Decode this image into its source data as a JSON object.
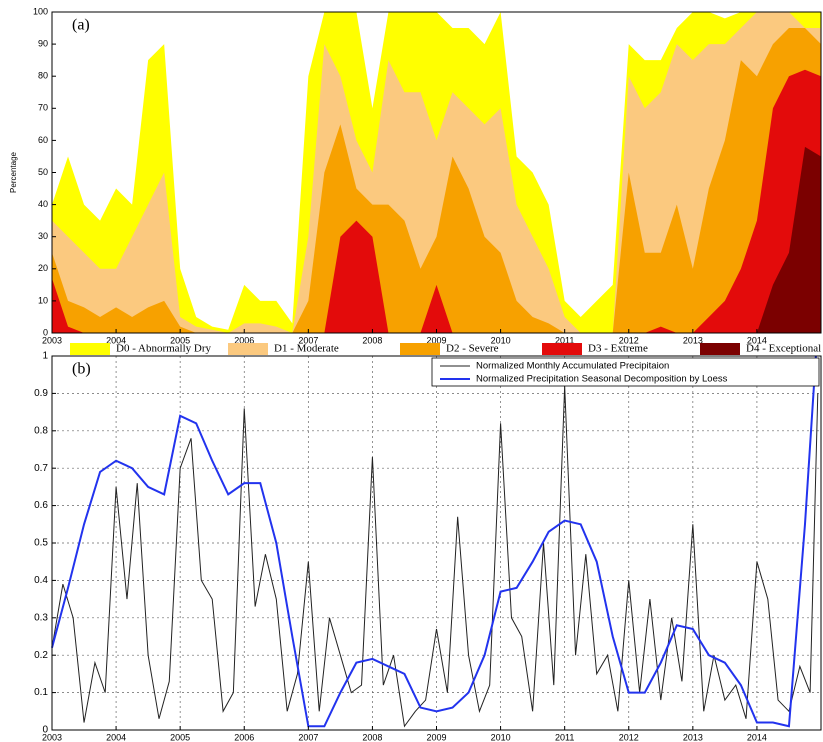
{
  "chart_data": [
    {
      "type": "area",
      "annotation": "(a)",
      "ylabel": "Percentage",
      "xlim": [
        2003,
        2015
      ],
      "xticks": [
        2003,
        2004,
        2005,
        2006,
        2007,
        2008,
        2009,
        2010,
        2011,
        2012,
        2013,
        2014
      ],
      "ylim": [
        0,
        100
      ],
      "yticks": [
        0,
        10,
        20,
        30,
        40,
        50,
        60,
        70,
        80,
        90,
        100
      ],
      "grid": false,
      "legend": "bottom",
      "x": [
        2003,
        2003.25,
        2003.5,
        2003.75,
        2004,
        2004.25,
        2004.5,
        2004.75,
        2005,
        2005.25,
        2005.5,
        2005.75,
        2006,
        2006.25,
        2006.5,
        2006.75,
        2007,
        2007.25,
        2007.5,
        2007.75,
        2008,
        2008.25,
        2008.5,
        2008.75,
        2009,
        2009.25,
        2009.5,
        2009.75,
        2010,
        2010.25,
        2010.5,
        2010.75,
        2011,
        2011.25,
        2011.5,
        2011.75,
        2012,
        2012.25,
        2012.5,
        2012.75,
        2013,
        2013.25,
        2013.5,
        2013.75,
        2014,
        2014.25,
        2014.5,
        2014.75,
        2015
      ],
      "series": [
        {
          "name": "D0 - Abnormally Dry",
          "color": "#ffff00",
          "values": [
            40,
            55,
            40,
            35,
            45,
            40,
            85,
            90,
            20,
            5,
            2,
            1,
            15,
            10,
            10,
            3,
            80,
            100,
            100,
            100,
            70,
            100,
            100,
            100,
            100,
            95,
            95,
            90,
            100,
            55,
            50,
            40,
            10,
            5,
            10,
            15,
            90,
            85,
            85,
            95,
            100,
            100,
            98,
            100,
            100,
            100,
            100,
            100,
            100
          ]
        },
        {
          "name": "D1 - Moderate",
          "color": "#fbc97f",
          "values": [
            35,
            30,
            25,
            20,
            20,
            30,
            40,
            50,
            5,
            2,
            1,
            0,
            3,
            3,
            2,
            0,
            30,
            90,
            80,
            60,
            50,
            85,
            75,
            75,
            60,
            75,
            70,
            65,
            70,
            40,
            30,
            20,
            5,
            0,
            0,
            0,
            80,
            70,
            75,
            90,
            85,
            90,
            90,
            95,
            100,
            100,
            100,
            95,
            95
          ]
        },
        {
          "name": "D2 - Severe",
          "color": "#f7a100",
          "values": [
            25,
            10,
            8,
            5,
            8,
            5,
            8,
            10,
            2,
            0,
            0,
            0,
            0,
            0,
            0,
            0,
            10,
            50,
            65,
            45,
            40,
            40,
            35,
            20,
            30,
            55,
            45,
            30,
            25,
            10,
            5,
            3,
            0,
            0,
            0,
            0,
            50,
            25,
            25,
            40,
            20,
            45,
            60,
            85,
            80,
            90,
            95,
            95,
            90
          ]
        },
        {
          "name": "D3 - Extreme",
          "color": "#e30b0b",
          "values": [
            17,
            2,
            0,
            0,
            0,
            0,
            0,
            0,
            0,
            0,
            0,
            0,
            0,
            0,
            0,
            0,
            0,
            0,
            30,
            35,
            30,
            0,
            0,
            0,
            15,
            0,
            0,
            0,
            0,
            0,
            0,
            0,
            0,
            0,
            0,
            0,
            0,
            0,
            2,
            0,
            0,
            5,
            10,
            20,
            35,
            70,
            80,
            82,
            80
          ]
        },
        {
          "name": "D4 - Exceptional",
          "color": "#7b0000",
          "values": [
            0,
            0,
            0,
            0,
            0,
            0,
            0,
            0,
            0,
            0,
            0,
            0,
            0,
            0,
            0,
            0,
            0,
            0,
            0,
            0,
            0,
            0,
            0,
            0,
            0,
            0,
            0,
            0,
            0,
            0,
            0,
            0,
            0,
            0,
            0,
            0,
            0,
            0,
            0,
            0,
            0,
            0,
            0,
            0,
            0,
            15,
            25,
            58,
            55
          ]
        }
      ]
    },
    {
      "type": "line",
      "annotation": "(b)",
      "xlim": [
        2003,
        2015
      ],
      "xticks": [
        2003,
        2004,
        2005,
        2006,
        2007,
        2008,
        2009,
        2010,
        2011,
        2012,
        2013,
        2014
      ],
      "ylim": [
        0,
        1
      ],
      "yticks": [
        0,
        0.1,
        0.2,
        0.3,
        0.4,
        0.5,
        0.6,
        0.7,
        0.8,
        0.9,
        1
      ],
      "grid": true,
      "legend": "upper right",
      "series": [
        {
          "name": "Normalized Monthly Accumulated Precipitaion",
          "color": "#222222",
          "x": [
            2003,
            2003.17,
            2003.33,
            2003.5,
            2003.67,
            2003.83,
            2004,
            2004.17,
            2004.33,
            2004.5,
            2004.67,
            2004.83,
            2005,
            2005.17,
            2005.33,
            2005.5,
            2005.67,
            2005.83,
            2006,
            2006.17,
            2006.33,
            2006.5,
            2006.67,
            2006.83,
            2007,
            2007.17,
            2007.33,
            2007.5,
            2007.67,
            2007.83,
            2008,
            2008.17,
            2008.33,
            2008.5,
            2008.67,
            2008.83,
            2009,
            2009.17,
            2009.33,
            2009.5,
            2009.67,
            2009.83,
            2010,
            2010.17,
            2010.33,
            2010.5,
            2010.67,
            2010.83,
            2011,
            2011.17,
            2011.33,
            2011.5,
            2011.67,
            2011.83,
            2012,
            2012.17,
            2012.33,
            2012.5,
            2012.67,
            2012.83,
            2013,
            2013.17,
            2013.33,
            2013.5,
            2013.67,
            2013.83,
            2014,
            2014.17,
            2014.33,
            2014.5,
            2014.67,
            2014.83,
            2014.95
          ],
          "values": [
            0.22,
            0.39,
            0.3,
            0.02,
            0.18,
            0.1,
            0.65,
            0.35,
            0.66,
            0.2,
            0.03,
            0.13,
            0.7,
            0.78,
            0.4,
            0.35,
            0.05,
            0.1,
            0.86,
            0.33,
            0.47,
            0.35,
            0.05,
            0.15,
            0.45,
            0.05,
            0.3,
            0.2,
            0.1,
            0.12,
            0.73,
            0.12,
            0.2,
            0.01,
            0.05,
            0.08,
            0.27,
            0.1,
            0.57,
            0.2,
            0.05,
            0.12,
            0.82,
            0.3,
            0.25,
            0.05,
            0.5,
            0.12,
            0.92,
            0.2,
            0.47,
            0.15,
            0.2,
            0.05,
            0.4,
            0.1,
            0.35,
            0.08,
            0.3,
            0.13,
            0.55,
            0.05,
            0.2,
            0.08,
            0.12,
            0.03,
            0.45,
            0.35,
            0.08,
            0.05,
            0.17,
            0.1,
            0.9
          ]
        },
        {
          "name": "Normalized Precipitation Seasonal Decomposition by Loess",
          "color": "#2233ee",
          "x": [
            2003,
            2003.25,
            2003.5,
            2003.75,
            2004,
            2004.25,
            2004.5,
            2004.75,
            2005,
            2005.25,
            2005.5,
            2005.75,
            2006,
            2006.25,
            2006.5,
            2006.75,
            2007,
            2007.25,
            2007.5,
            2007.75,
            2008,
            2008.25,
            2008.5,
            2008.75,
            2009,
            2009.25,
            2009.5,
            2009.75,
            2010,
            2010.25,
            2010.5,
            2010.75,
            2011,
            2011.25,
            2011.5,
            2011.75,
            2012,
            2012.25,
            2012.5,
            2012.75,
            2013,
            2013.25,
            2013.5,
            2013.75,
            2014,
            2014.25,
            2014.5,
            2014.75,
            2014.92
          ],
          "values": [
            0.22,
            0.38,
            0.55,
            0.69,
            0.72,
            0.7,
            0.65,
            0.63,
            0.84,
            0.82,
            0.72,
            0.63,
            0.66,
            0.66,
            0.5,
            0.25,
            0.01,
            0.01,
            0.1,
            0.18,
            0.19,
            0.17,
            0.15,
            0.06,
            0.05,
            0.06,
            0.1,
            0.2,
            0.37,
            0.38,
            0.45,
            0.53,
            0.56,
            0.55,
            0.45,
            0.25,
            0.1,
            0.1,
            0.18,
            0.28,
            0.27,
            0.2,
            0.18,
            0.12,
            0.02,
            0.02,
            0.01,
            0.55,
            1
          ]
        }
      ]
    }
  ]
}
